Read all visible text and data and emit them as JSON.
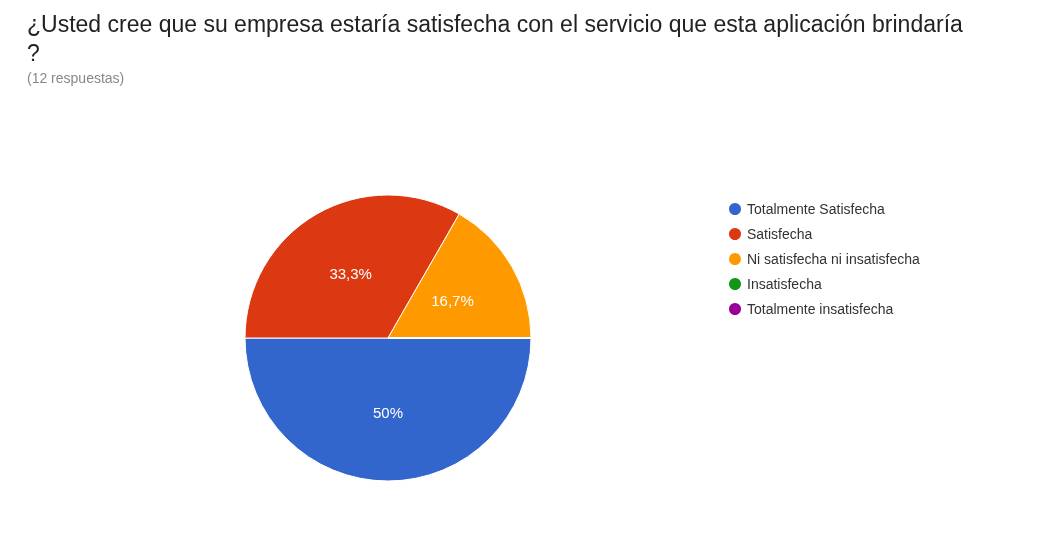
{
  "chart_data": {
    "type": "pie",
    "title": "¿Usted cree que su empresa estaría satisfecha con el servicio que esta aplicación brindaría?",
    "subtitle": "(12 respuestas)",
    "categories": [
      "Totalmente Satisfecha",
      "Satisfecha",
      "Ni satisfecha ni insatisfecha",
      "Insatisfecha",
      "Totalmente insatisfecha"
    ],
    "values": [
      50,
      33.3,
      16.7,
      0,
      0
    ],
    "value_labels": [
      "50%",
      "33,3%",
      "16,7%",
      null,
      null
    ],
    "colors": [
      "#3366cc",
      "#dc3912",
      "#ff9900",
      "#109618",
      "#990099"
    ],
    "legend": "right"
  }
}
